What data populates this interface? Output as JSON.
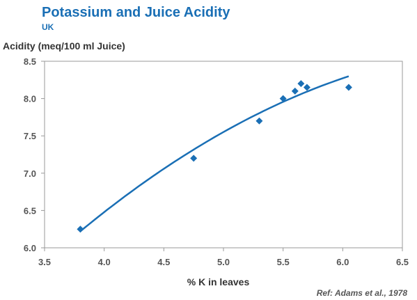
{
  "chart_data": {
    "type": "scatter",
    "title": "Potassium and Juice Acidity",
    "subtitle": "UK",
    "ylabel": "Acidity (meq/100 ml Juice)",
    "xlabel": "% K in leaves",
    "reference": "Ref: Adams et al., 1978",
    "xlim": [
      3.5,
      6.5
    ],
    "ylim": [
      6.0,
      8.5
    ],
    "x_ticks": [
      "3.5",
      "4.0",
      "4.5",
      "5.0",
      "5.5",
      "6.0",
      "6.5"
    ],
    "y_ticks": [
      "6.0",
      "6.5",
      "7.0",
      "7.5",
      "8.0",
      "8.5"
    ],
    "grid": false,
    "series": [
      {
        "x": [
          3.8,
          4.75,
          5.3,
          5.5,
          5.6,
          5.65,
          5.7,
          6.05
        ],
        "y": [
          6.25,
          7.2,
          7.7,
          8.0,
          8.1,
          8.2,
          8.15,
          8.15
        ]
      }
    ],
    "trendline": {
      "type": "quadratic",
      "x_range": [
        3.8,
        6.05
      ],
      "x": [
        3.8,
        4.75,
        5.3,
        6.05
      ],
      "y": [
        6.22,
        7.32,
        7.8,
        8.3
      ]
    },
    "colors": {
      "marker": "#1a6fb5",
      "trendline": "#1a6fb5",
      "title": "#1a6fb5",
      "axis": "#999999"
    }
  }
}
